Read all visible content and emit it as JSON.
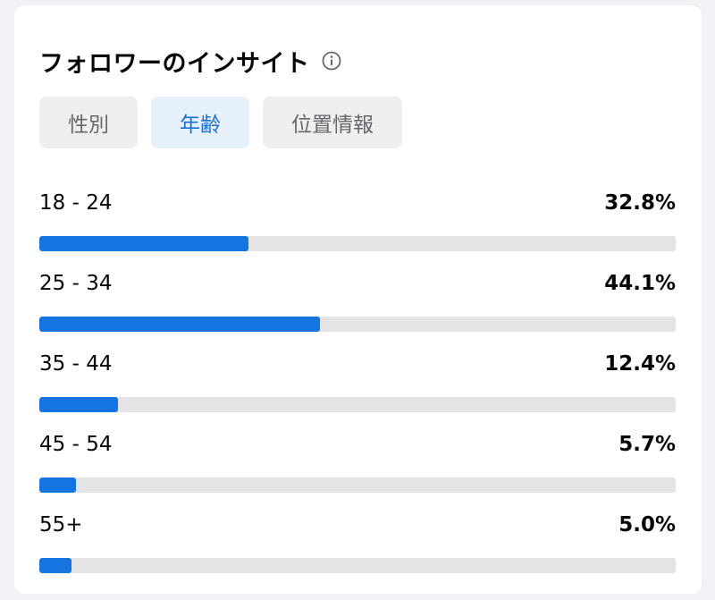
{
  "header": {
    "title": "フォロワーのインサイト",
    "info_icon": "info-circle-icon"
  },
  "tabs": [
    {
      "label": "性別",
      "active": false
    },
    {
      "label": "年齢",
      "active": true
    },
    {
      "label": "位置情報",
      "active": false
    }
  ],
  "age_groups": [
    {
      "label": "18 - 24",
      "value_text": "32.8%",
      "percent": 32.8
    },
    {
      "label": "25 - 34",
      "value_text": "44.1%",
      "percent": 44.1
    },
    {
      "label": "35 - 44",
      "value_text": "12.4%",
      "percent": 12.4
    },
    {
      "label": "45 - 54",
      "value_text": "5.7%",
      "percent": 5.7
    },
    {
      "label": "55+",
      "value_text": "5.0%",
      "percent": 5.0
    }
  ],
  "colors": {
    "accent": "#1674e0",
    "track": "#e4e4e6",
    "active_tab_bg": "#e7f1fd",
    "active_tab_text": "#1a6fd6",
    "tab_bg": "#eeeff1",
    "tab_text": "#65676b"
  },
  "scale_max_percent": 100
}
